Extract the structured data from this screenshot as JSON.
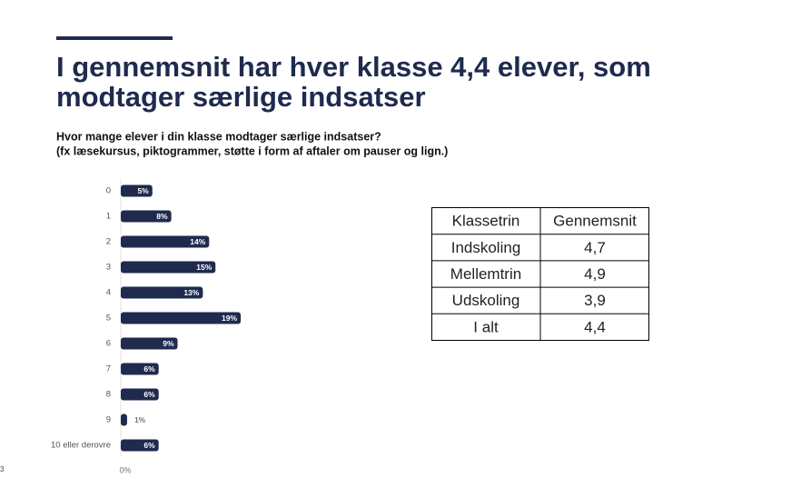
{
  "chart_data": {
    "type": "bar",
    "orientation": "horizontal",
    "title": [
      "I gennemsnit har hver klasse 4,4 elever, som",
      "modtager særlige indsatser"
    ],
    "subtitle": [
      "Hvor mange elever i din klasse modtager særlige indsatser?",
      "(fx læsekursus, piktogrammer, støtte i form af aftaler om pauser og lign.)"
    ],
    "categories": [
      "0",
      "1",
      "2",
      "3",
      "4",
      "5",
      "6",
      "7",
      "8",
      "9",
      "10 eller derovre"
    ],
    "values": [
      5,
      8,
      14,
      15,
      13,
      19,
      9,
      6,
      6,
      1,
      6
    ],
    "value_labels": [
      "5%",
      "8%",
      "14%",
      "15%",
      "13%",
      "19%",
      "9%",
      "6%",
      "6%",
      "1%",
      "6%"
    ],
    "color": "#1f2a4e",
    "xlim": [
      0,
      20
    ],
    "xticks": [
      {
        "value": 0,
        "label": "0%"
      }
    ]
  },
  "table": {
    "header": [
      "Klassetrin",
      "Gennemsnit"
    ],
    "rows": [
      [
        "Indskoling",
        "4,7"
      ],
      [
        "Mellemtrin",
        "4,9"
      ],
      [
        "Udskoling",
        "3,9"
      ],
      [
        "I alt",
        "4,4"
      ]
    ]
  },
  "page_number": "3"
}
